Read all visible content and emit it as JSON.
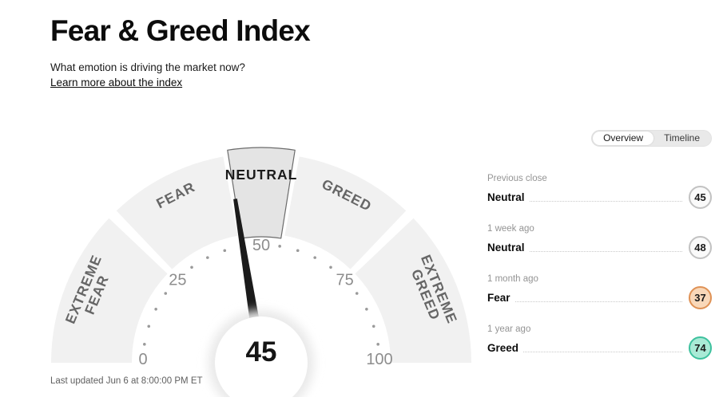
{
  "page": {
    "title": "Fear & Greed Index",
    "subtitle": "What emotion is driving the market now?",
    "learn_more": "Learn more about the index",
    "last_updated": "Last updated Jun 6 at 8:00:00 PM ET"
  },
  "view_toggle": {
    "options": [
      {
        "label": "Overview",
        "selected": true
      },
      {
        "label": "Timeline",
        "selected": false
      }
    ]
  },
  "history": [
    {
      "label": "Previous close",
      "rating": "Neutral",
      "value": 45,
      "badge": {
        "fill": "#fafafa",
        "border": "#c2c2c2"
      }
    },
    {
      "label": "1 week ago",
      "rating": "Neutral",
      "value": 48,
      "badge": {
        "fill": "#fafafa",
        "border": "#c2c2c2"
      }
    },
    {
      "label": "1 month ago",
      "rating": "Fear",
      "value": 37,
      "badge": {
        "fill": "#f9d8b9",
        "border": "#df9256"
      }
    },
    {
      "label": "1 year ago",
      "rating": "Greed",
      "value": 74,
      "badge": {
        "fill": "#a9ead6",
        "border": "#3ec19e"
      }
    }
  ],
  "chart_data": {
    "type": "gauge",
    "title": "Fear & Greed Index",
    "value": 45,
    "rating": "Neutral",
    "min": 0,
    "max": 100,
    "axis_ticks": [
      0,
      25,
      50,
      75,
      100
    ],
    "minor_tick_step": 5,
    "segments": [
      {
        "label": "EXTREME FEAR",
        "lines": [
          "EXTREME",
          "FEAR"
        ],
        "from": 0,
        "to": 25,
        "highlight": false
      },
      {
        "label": "FEAR",
        "lines": [
          "FEAR"
        ],
        "from": 25,
        "to": 45,
        "highlight": false
      },
      {
        "label": "NEUTRAL",
        "lines": [
          "NEUTRAL"
        ],
        "from": 45,
        "to": 55,
        "highlight": true
      },
      {
        "label": "GREED",
        "lines": [
          "GREED"
        ],
        "from": 55,
        "to": 75,
        "highlight": false
      },
      {
        "label": "EXTREME GREED",
        "lines": [
          "EXTREME",
          "GREED"
        ],
        "from": 75,
        "to": 100,
        "highlight": false
      }
    ],
    "colors": {
      "segment": "#f1f1f1",
      "highlight_fill": "#e4e4e4",
      "highlight_stroke": "#6b6b6b",
      "needle": "#1b1b1b",
      "label": "#666666",
      "highlight_label": "#1b1b1b",
      "tick_number": "#8d8d8d",
      "tick_dot": "#9a9a9a",
      "value_text": "#151515"
    }
  }
}
